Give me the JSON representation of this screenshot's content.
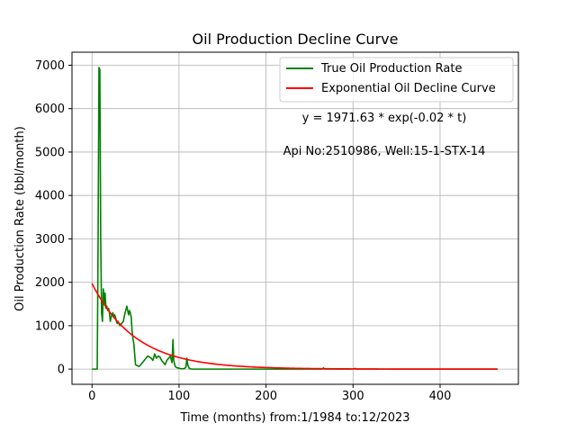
{
  "chart_data": {
    "type": "line",
    "title": "Oil Production Decline Curve",
    "xlabel": "Time (months) from:1/1984 to:12/2023",
    "ylabel": "Oil Production Rate (bbl/month)",
    "xlim": [
      -23,
      490
    ],
    "ylim": [
      -350,
      7300
    ],
    "xticks": [
      0,
      100,
      200,
      300,
      400
    ],
    "yticks": [
      0,
      1000,
      2000,
      3000,
      4000,
      5000,
      6000,
      7000
    ],
    "grid": true,
    "legend_position": "top-right",
    "annotations": [
      "y = 1971.63 * exp(-0.02 * t)",
      "Api No:2510986, Well:15-1-STX-14"
    ],
    "series": [
      {
        "name": "True Oil Production Rate",
        "color": "#008000",
        "x": [
          0,
          3,
          6,
          7,
          8,
          9,
          10,
          11,
          12,
          13,
          14,
          15,
          16,
          17,
          18,
          19,
          20,
          21,
          22,
          23,
          24,
          25,
          26,
          27,
          28,
          29,
          30,
          32,
          34,
          36,
          38,
          40,
          41,
          42,
          43,
          44,
          45,
          46,
          47,
          48,
          50,
          52,
          54,
          56,
          58,
          60,
          62,
          64,
          66,
          68,
          70,
          72,
          74,
          76,
          78,
          80,
          82,
          84,
          86,
          88,
          90,
          92,
          93,
          94,
          95,
          96,
          98,
          100,
          102,
          104,
          106,
          108,
          109,
          110,
          112,
          115,
          120,
          130,
          150,
          200,
          250,
          265,
          266,
          267,
          270,
          300,
          302,
          304,
          350,
          400,
          450,
          466
        ],
        "values": [
          0,
          0,
          0,
          3000,
          6950,
          6900,
          3000,
          1300,
          1100,
          1850,
          1500,
          1750,
          1400,
          1450,
          1350,
          1400,
          1300,
          1100,
          1200,
          1250,
          1300,
          1200,
          1250,
          1200,
          1100,
          1050,
          1100,
          1000,
          1050,
          1100,
          1300,
          1450,
          1350,
          1250,
          1350,
          1300,
          1200,
          900,
          700,
          600,
          100,
          80,
          60,
          100,
          150,
          200,
          250,
          300,
          280,
          250,
          200,
          350,
          250,
          300,
          280,
          200,
          150,
          100,
          200,
          250,
          300,
          150,
          680,
          200,
          100,
          50,
          30,
          20,
          10,
          10,
          10,
          50,
          250,
          100,
          10,
          0,
          0,
          0,
          0,
          0,
          0,
          0,
          30,
          0,
          0,
          0,
          15,
          0,
          0,
          0,
          0,
          0
        ]
      },
      {
        "name": "Exponential Oil Decline Curve",
        "color": "#ff0000",
        "function": {
          "a": 1971.63,
          "b": -0.02
        },
        "x_range": [
          0,
          466
        ]
      }
    ]
  }
}
